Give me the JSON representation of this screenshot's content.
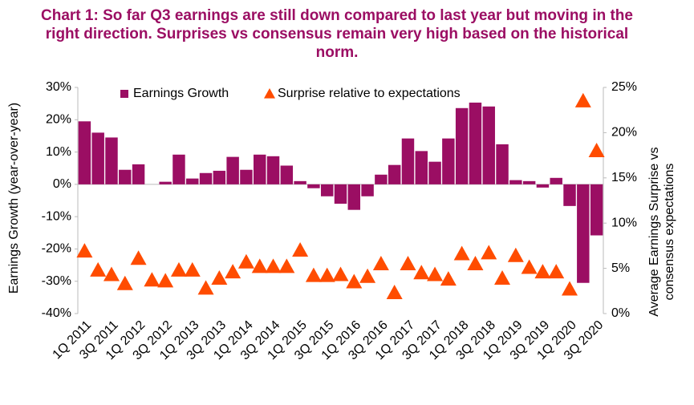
{
  "chart_data": {
    "type": "bar",
    "title": "Chart 1: So far Q3 earnings are still down compared to last year but moving in the right direction. Surprises vs consensus remain very high based on the historical norm.",
    "y_label": "Earnings Growth (year-over-year)",
    "y2_label": "Average Earnings Surprise vs consensus expectations",
    "categories": [
      "1Q 2011",
      null,
      "3Q 2011",
      null,
      "1Q 2012",
      null,
      "3Q 2012",
      null,
      "1Q 2013",
      null,
      "3Q 2013",
      null,
      "1Q 2014",
      null,
      "3Q 2014",
      null,
      "1Q 2015",
      null,
      "3Q 2015",
      null,
      "1Q 2016",
      null,
      "3Q 2016",
      null,
      "1Q 2017",
      null,
      "3Q 2017",
      null,
      "1Q 2018",
      null,
      "3Q 2018",
      null,
      "1Q 2019",
      null,
      "3Q 2019",
      null,
      "1Q 2020",
      null,
      "3Q 2020"
    ],
    "series": [
      {
        "name": "Earnings Growth",
        "type": "bar",
        "color": "#9b0e63",
        "values": [
          19.5,
          16,
          14.5,
          4.5,
          6.2,
          0,
          0.8,
          9.2,
          1.8,
          3.5,
          4.2,
          8.5,
          4.5,
          9.2,
          8.7,
          5.8,
          1.0,
          -1.2,
          -3.7,
          -6.0,
          -7.9,
          -3.7,
          3.0,
          6.0,
          14.2,
          10.3,
          7.0,
          14.2,
          23.6,
          25.3,
          24.1,
          12.4,
          1.3,
          1.0,
          -1.0,
          2.0,
          -6.7,
          -30.5,
          -15.8
        ]
      },
      {
        "name": "Surprise relative to expectations",
        "type": "triangle",
        "axis": "y2",
        "color": "#ff4c00",
        "values": [
          6.9,
          4.8,
          4.3,
          3.3,
          6.1,
          3.7,
          3.6,
          4.8,
          4.8,
          2.8,
          3.9,
          4.6,
          5.7,
          5.2,
          5.2,
          5.2,
          7.0,
          4.2,
          4.2,
          4.3,
          3.5,
          4.1,
          5.5,
          2.3,
          5.5,
          4.5,
          4.3,
          3.8,
          6.6,
          5.5,
          6.7,
          3.9,
          6.4,
          5.1,
          4.6,
          4.6,
          2.7,
          23.5,
          18.0
        ]
      }
    ],
    "ylim": [
      -40,
      30
    ],
    "yticks": [
      {
        "value": -40,
        "label": "-40%"
      },
      {
        "value": -30,
        "label": "-30%"
      },
      {
        "value": -20,
        "label": "-20%"
      },
      {
        "value": -10,
        "label": "-10%"
      },
      {
        "value": 0,
        "label": "0%"
      },
      {
        "value": 10,
        "label": "10%"
      },
      {
        "value": 20,
        "label": "20%"
      },
      {
        "value": 30,
        "label": "30%"
      }
    ],
    "y2lim": [
      0,
      25
    ],
    "y2ticks": [
      {
        "value": 0,
        "label": "0%"
      },
      {
        "value": 5,
        "label": "5%"
      },
      {
        "value": 10,
        "label": "10%"
      },
      {
        "value": 15,
        "label": "15%"
      },
      {
        "value": 20,
        "label": "20%"
      },
      {
        "value": 25,
        "label": "25%"
      }
    ],
    "legend": "top"
  }
}
